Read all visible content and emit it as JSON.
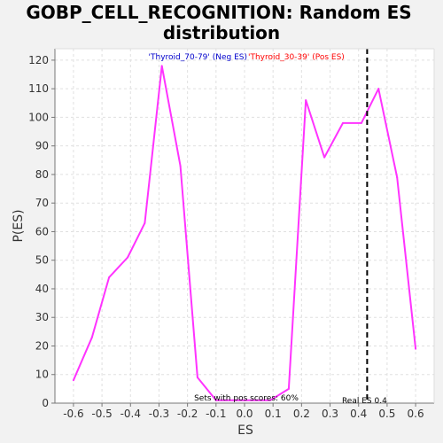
{
  "chart_data": {
    "type": "line",
    "title_line1": "GOBP_CELL_RECOGNITION: Random ES",
    "title_line2": "distribution",
    "xlabel": "ES",
    "ylabel": "P(ES)",
    "xlim": [
      -0.665,
      0.665
    ],
    "ylim": [
      0,
      124
    ],
    "xticks": [
      -0.6,
      -0.5,
      -0.4,
      -0.3,
      -0.2,
      -0.1,
      0.0,
      0.1,
      0.2,
      0.3,
      0.4,
      0.5,
      0.6
    ],
    "xtick_labels": [
      "-0.6",
      "-0.5",
      "-0.4",
      "-0.3",
      "-0.2",
      "-0.1",
      "0.0",
      "0.1",
      "0.2",
      "0.3",
      "0.4",
      "0.5",
      "0.6"
    ],
    "yticks": [
      0,
      10,
      20,
      30,
      40,
      50,
      60,
      70,
      80,
      90,
      100,
      110,
      120
    ],
    "ytick_labels": [
      "0",
      "10",
      "20",
      "30",
      "40",
      "50",
      "60",
      "70",
      "80",
      "90",
      "100",
      "110",
      "120"
    ],
    "grid": true,
    "series": [
      {
        "color": "#ff33ff",
        "x": [
          -0.6,
          -0.535,
          -0.475,
          -0.41,
          -0.35,
          -0.29,
          -0.225,
          -0.165,
          -0.1,
          -0.04,
          0.025,
          0.09,
          0.155,
          0.215,
          0.28,
          0.345,
          0.41,
          0.47,
          0.535,
          0.6
        ],
        "y": [
          8,
          23,
          44,
          51,
          63,
          118,
          83,
          9,
          1,
          1,
          1,
          1,
          5,
          106,
          86,
          98,
          98,
          110,
          79,
          19
        ]
      }
    ],
    "real_es_line": {
      "x": 0.43,
      "label": "Real ES 0.4",
      "color": "#000000"
    },
    "annotations": {
      "neg_label": "'Thyroid_70-79' (Neg ES)",
      "neg_color": "#0000cc",
      "pos_label": "'Thyroid_30-39' (Pos ES)",
      "pos_color": "#ff0000",
      "pos_scores_text": "Sets with pos scores: 60%"
    },
    "colors": {
      "plot_bg": "#ffffff",
      "page_bg": "#f2f2f2",
      "axis": "#777777"
    }
  }
}
